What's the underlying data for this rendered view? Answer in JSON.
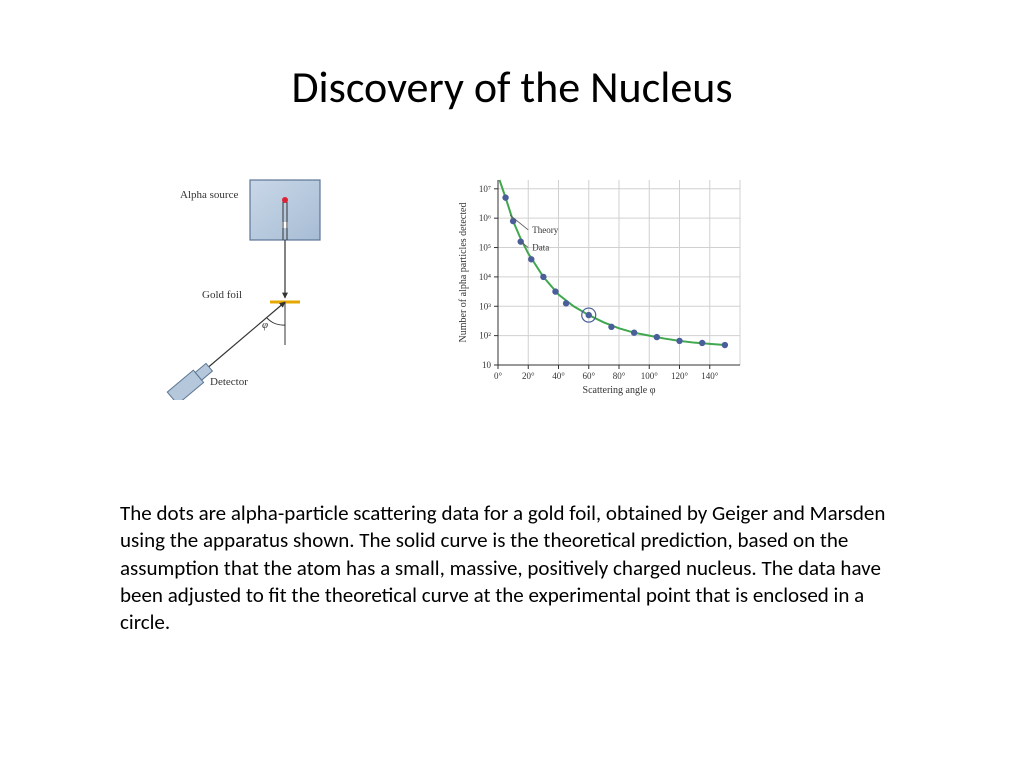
{
  "title": "Discovery of the Nucleus",
  "apparatus": {
    "source_label": "Alpha source",
    "foil_label": "Gold foil",
    "detector_label": "Detector",
    "angle_label": "φ",
    "box_fill": "#a7bcd4",
    "box_stroke": "#5c7695",
    "detector_fill": "#b5c7da",
    "foil_color": "#e6a800",
    "label_fontsize": 11,
    "label_color": "#333333"
  },
  "chart": {
    "type": "scatter",
    "x_label": "Scattering angle φ",
    "y_label": "Number of alpha particles detected",
    "legend": {
      "theory": "Theory",
      "data": "Data"
    },
    "x_ticks": [
      "0°",
      "20°",
      "40°",
      "60°",
      "80°",
      "100°",
      "120°",
      "140°"
    ],
    "x_vals": [
      0,
      20,
      40,
      60,
      80,
      100,
      120,
      140
    ],
    "y_ticks": [
      "10",
      "10²",
      "10³",
      "10⁴",
      "10⁵",
      "10⁶",
      "10⁷"
    ],
    "y_exp": [
      1,
      2,
      3,
      4,
      5,
      6,
      7
    ],
    "xlim": [
      0,
      160
    ],
    "ylim_exp": [
      1,
      7.3
    ],
    "grid_color": "#d0d0d0",
    "axis_color": "#333333",
    "line_color": "#3fa84f",
    "marker_fill": "#4a5f99",
    "highlight_stroke": "#4a5f99",
    "label_fontsize": 10,
    "tick_fontsize": 9,
    "line_width": 2,
    "marker_r": 3.2,
    "theory_points": [
      {
        "x": 1,
        "yexp": 7.3
      },
      {
        "x": 5,
        "yexp": 6.7
      },
      {
        "x": 10,
        "yexp": 5.9
      },
      {
        "x": 15,
        "yexp": 5.3
      },
      {
        "x": 20,
        "yexp": 4.8
      },
      {
        "x": 30,
        "yexp": 4.0
      },
      {
        "x": 40,
        "yexp": 3.4
      },
      {
        "x": 50,
        "yexp": 3.0
      },
      {
        "x": 60,
        "yexp": 2.7
      },
      {
        "x": 70,
        "yexp": 2.45
      },
      {
        "x": 80,
        "yexp": 2.25
      },
      {
        "x": 90,
        "yexp": 2.1
      },
      {
        "x": 100,
        "yexp": 2.0
      },
      {
        "x": 110,
        "yexp": 1.9
      },
      {
        "x": 120,
        "yexp": 1.82
      },
      {
        "x": 130,
        "yexp": 1.76
      },
      {
        "x": 140,
        "yexp": 1.72
      },
      {
        "x": 150,
        "yexp": 1.68
      }
    ],
    "data_points": [
      {
        "x": 5,
        "yexp": 6.7
      },
      {
        "x": 10,
        "yexp": 5.9
      },
      {
        "x": 15,
        "yexp": 5.2
      },
      {
        "x": 22,
        "yexp": 4.6
      },
      {
        "x": 30,
        "yexp": 4.0
      },
      {
        "x": 38,
        "yexp": 3.5
      },
      {
        "x": 45,
        "yexp": 3.1
      },
      {
        "x": 60,
        "yexp": 2.7,
        "highlight": true
      },
      {
        "x": 75,
        "yexp": 2.3
      },
      {
        "x": 90,
        "yexp": 2.1
      },
      {
        "x": 105,
        "yexp": 1.95
      },
      {
        "x": 120,
        "yexp": 1.82
      },
      {
        "x": 135,
        "yexp": 1.75
      },
      {
        "x": 150,
        "yexp": 1.68
      }
    ]
  },
  "body_text": "The dots are alpha-particle scattering data for a gold foil, obtained by Geiger and Marsden using the apparatus shown. The solid curve is the theoretical prediction, based on the assumption that the atom has a small, massive, positively charged nucleus. The data have been adjusted to fit the theoretical curve at the experimental point that is enclosed in a circle."
}
